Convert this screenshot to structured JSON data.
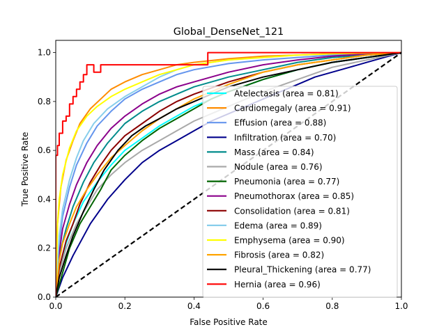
{
  "chart_data": {
    "type": "line",
    "title": "Global_DenseNet_121",
    "xlabel": "False Positive Rate",
    "ylabel": "True Positive Rate",
    "xlim": [
      0,
      1
    ],
    "ylim": [
      0,
      1.05
    ],
    "x_ticks": [
      "0.0",
      "0.2",
      "0.4",
      "0.6",
      "0.8",
      "1.0"
    ],
    "y_ticks": [
      "0.0",
      "0.2",
      "0.4",
      "0.6",
      "0.8",
      "1.0"
    ],
    "legend_position": "lower-right",
    "grid": false,
    "series": [
      {
        "name": "Atelectasis (area = 0.81)",
        "color": "#00ffff",
        "x": [
          0,
          0.01,
          0.03,
          0.05,
          0.08,
          0.12,
          0.16,
          0.2,
          0.25,
          0.3,
          0.35,
          0.4,
          0.45,
          0.5,
          0.6,
          0.7,
          0.8,
          0.9,
          1.0
        ],
        "y": [
          0,
          0.12,
          0.22,
          0.3,
          0.39,
          0.47,
          0.54,
          0.6,
          0.65,
          0.7,
          0.74,
          0.78,
          0.81,
          0.84,
          0.89,
          0.93,
          0.96,
          0.98,
          1.0
        ]
      },
      {
        "name": "Cardiomegaly (area = 0.91)",
        "color": "#ff8c00",
        "x": [
          0,
          0.005,
          0.015,
          0.03,
          0.05,
          0.07,
          0.1,
          0.13,
          0.16,
          0.2,
          0.25,
          0.3,
          0.35,
          0.4,
          0.5,
          0.6,
          0.7,
          0.8,
          0.9,
          1.0
        ],
        "y": [
          0,
          0.3,
          0.45,
          0.56,
          0.64,
          0.71,
          0.77,
          0.81,
          0.85,
          0.88,
          0.91,
          0.93,
          0.95,
          0.96,
          0.975,
          0.985,
          0.99,
          0.995,
          0.998,
          1.0
        ]
      },
      {
        "name": "Effusion (area = 0.88)",
        "color": "#6495ed",
        "x": [
          0,
          0.01,
          0.02,
          0.04,
          0.06,
          0.09,
          0.12,
          0.16,
          0.2,
          0.25,
          0.3,
          0.35,
          0.4,
          0.5,
          0.6,
          0.7,
          0.8,
          0.9,
          1.0
        ],
        "y": [
          0,
          0.22,
          0.33,
          0.45,
          0.54,
          0.63,
          0.7,
          0.76,
          0.81,
          0.85,
          0.88,
          0.91,
          0.93,
          0.955,
          0.97,
          0.98,
          0.99,
          0.995,
          1.0
        ]
      },
      {
        "name": "Infiltration (area = 0.70)",
        "color": "#00008b",
        "x": [
          0,
          0.02,
          0.05,
          0.1,
          0.15,
          0.2,
          0.25,
          0.3,
          0.35,
          0.4,
          0.45,
          0.5,
          0.55,
          0.6,
          0.65,
          0.7,
          0.75,
          0.8,
          0.85,
          0.9,
          0.95,
          1.0
        ],
        "y": [
          0,
          0.08,
          0.17,
          0.3,
          0.4,
          0.48,
          0.55,
          0.6,
          0.64,
          0.68,
          0.72,
          0.75,
          0.78,
          0.81,
          0.84,
          0.87,
          0.9,
          0.92,
          0.94,
          0.96,
          0.98,
          1.0
        ]
      },
      {
        "name": "Mass (area = 0.84)",
        "color": "#008b8b",
        "x": [
          0,
          0.01,
          0.03,
          0.05,
          0.08,
          0.11,
          0.15,
          0.2,
          0.25,
          0.3,
          0.35,
          0.4,
          0.5,
          0.6,
          0.7,
          0.8,
          0.9,
          1.0
        ],
        "y": [
          0,
          0.17,
          0.28,
          0.37,
          0.47,
          0.55,
          0.63,
          0.71,
          0.76,
          0.8,
          0.83,
          0.86,
          0.9,
          0.93,
          0.96,
          0.98,
          0.99,
          1.0
        ]
      },
      {
        "name": "Nodule (area = 0.76)",
        "color": "#a9a9a9",
        "x": [
          0,
          0.01,
          0.03,
          0.06,
          0.09,
          0.12,
          0.16,
          0.2,
          0.25,
          0.3,
          0.35,
          0.4,
          0.45,
          0.5,
          0.6,
          0.7,
          0.8,
          0.9,
          1.0
        ],
        "y": [
          0,
          0.1,
          0.2,
          0.3,
          0.37,
          0.44,
          0.5,
          0.55,
          0.6,
          0.64,
          0.68,
          0.72,
          0.75,
          0.78,
          0.84,
          0.89,
          0.94,
          0.97,
          1.0
        ]
      },
      {
        "name": "Pneumonia (area = 0.77)",
        "color": "#006400",
        "x": [
          0,
          0.02,
          0.04,
          0.07,
          0.1,
          0.13,
          0.16,
          0.2,
          0.25,
          0.3,
          0.35,
          0.4,
          0.45,
          0.5,
          0.6,
          0.7,
          0.8,
          0.9,
          1.0
        ],
        "y": [
          0,
          0.1,
          0.2,
          0.3,
          0.37,
          0.44,
          0.52,
          0.58,
          0.64,
          0.69,
          0.73,
          0.77,
          0.81,
          0.84,
          0.89,
          0.93,
          0.96,
          0.98,
          1.0
        ]
      },
      {
        "name": "Pneumothorax (area = 0.85)",
        "color": "#8b008b",
        "x": [
          0,
          0.01,
          0.02,
          0.04,
          0.06,
          0.09,
          0.12,
          0.16,
          0.2,
          0.25,
          0.3,
          0.35,
          0.4,
          0.5,
          0.6,
          0.7,
          0.8,
          0.9,
          1.0
        ],
        "y": [
          0,
          0.18,
          0.28,
          0.38,
          0.46,
          0.55,
          0.62,
          0.69,
          0.74,
          0.79,
          0.83,
          0.86,
          0.88,
          0.92,
          0.95,
          0.97,
          0.985,
          0.995,
          1.0
        ]
      },
      {
        "name": "Consolidation (area = 0.81)",
        "color": "#8b0000",
        "x": [
          0,
          0.01,
          0.03,
          0.05,
          0.07,
          0.1,
          0.13,
          0.16,
          0.2,
          0.25,
          0.3,
          0.35,
          0.4,
          0.5,
          0.6,
          0.7,
          0.8,
          0.9,
          1.0
        ],
        "y": [
          0,
          0.12,
          0.23,
          0.3,
          0.38,
          0.47,
          0.54,
          0.6,
          0.66,
          0.71,
          0.76,
          0.8,
          0.83,
          0.88,
          0.92,
          0.95,
          0.97,
          0.99,
          1.0
        ]
      },
      {
        "name": "Edema (area = 0.89)",
        "color": "#87ceeb",
        "x": [
          0,
          0.01,
          0.02,
          0.04,
          0.06,
          0.08,
          0.11,
          0.15,
          0.2,
          0.25,
          0.3,
          0.35,
          0.4,
          0.5,
          0.6,
          0.7,
          0.8,
          0.9,
          1.0
        ],
        "y": [
          0,
          0.25,
          0.36,
          0.48,
          0.57,
          0.64,
          0.71,
          0.77,
          0.82,
          0.86,
          0.9,
          0.93,
          0.95,
          0.97,
          0.98,
          0.99,
          0.995,
          0.998,
          1.0
        ]
      },
      {
        "name": "Emphysema (area = 0.90)",
        "color": "#ffff00",
        "x": [
          0,
          0.005,
          0.01,
          0.02,
          0.04,
          0.06,
          0.09,
          0.12,
          0.16,
          0.2,
          0.25,
          0.3,
          0.35,
          0.4,
          0.5,
          0.6,
          0.7,
          0.8,
          0.9,
          1.0
        ],
        "y": [
          0,
          0.3,
          0.4,
          0.5,
          0.61,
          0.68,
          0.74,
          0.78,
          0.82,
          0.85,
          0.88,
          0.91,
          0.93,
          0.95,
          0.97,
          0.98,
          0.99,
          0.995,
          0.998,
          1.0
        ]
      },
      {
        "name": "Fibrosis (area = 0.82)",
        "color": "#ffa500",
        "x": [
          0,
          0.01,
          0.02,
          0.04,
          0.06,
          0.09,
          0.12,
          0.16,
          0.2,
          0.25,
          0.3,
          0.35,
          0.4,
          0.5,
          0.6,
          0.7,
          0.8,
          0.9,
          1.0
        ],
        "y": [
          0,
          0.15,
          0.22,
          0.3,
          0.37,
          0.44,
          0.5,
          0.57,
          0.62,
          0.68,
          0.73,
          0.77,
          0.81,
          0.87,
          0.92,
          0.95,
          0.97,
          0.99,
          1.0
        ]
      },
      {
        "name": "Pleural_Thickening (area = 0.77)",
        "color": "#000000",
        "x": [
          0,
          0.01,
          0.03,
          0.05,
          0.08,
          0.11,
          0.14,
          0.18,
          0.22,
          0.26,
          0.3,
          0.35,
          0.4,
          0.45,
          0.5,
          0.6,
          0.7,
          0.8,
          0.9,
          1.0
        ],
        "y": [
          0,
          0.08,
          0.17,
          0.25,
          0.35,
          0.44,
          0.52,
          0.6,
          0.66,
          0.7,
          0.73,
          0.77,
          0.8,
          0.83,
          0.86,
          0.9,
          0.93,
          0.96,
          0.98,
          1.0
        ]
      },
      {
        "name": "Hernia (area = 0.96)",
        "color": "#ff0000",
        "x": [
          0,
          0,
          0.005,
          0.005,
          0.01,
          0.01,
          0.02,
          0.02,
          0.03,
          0.03,
          0.04,
          0.04,
          0.05,
          0.05,
          0.06,
          0.06,
          0.07,
          0.07,
          0.08,
          0.08,
          0.09,
          0.09,
          0.11,
          0.11,
          0.13,
          0.13,
          0.44,
          0.44,
          0.55,
          0.55,
          1.0
        ],
        "y": [
          0,
          0.58,
          0.58,
          0.62,
          0.62,
          0.67,
          0.67,
          0.72,
          0.72,
          0.74,
          0.74,
          0.79,
          0.79,
          0.82,
          0.82,
          0.85,
          0.85,
          0.88,
          0.88,
          0.91,
          0.91,
          0.95,
          0.95,
          0.92,
          0.92,
          0.95,
          0.95,
          1.0,
          1.0,
          1.0,
          1.0
        ]
      }
    ]
  }
}
